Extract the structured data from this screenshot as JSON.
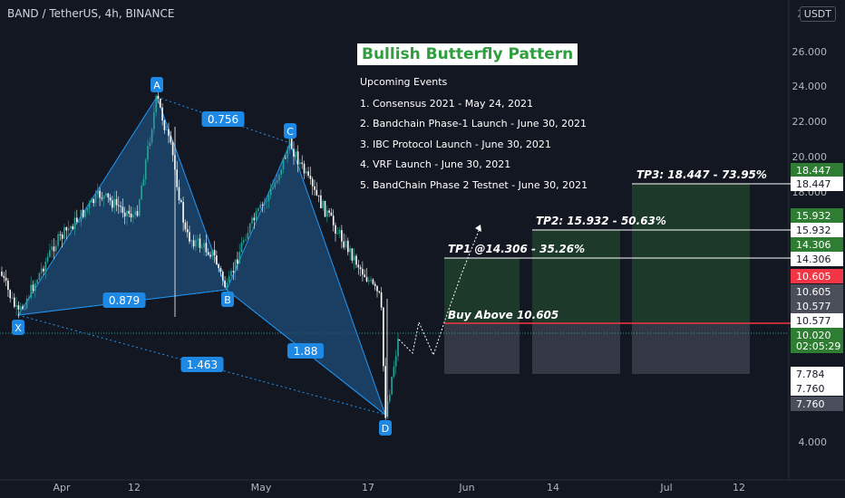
{
  "header": {
    "symbol": "BAND / TetherUS, 4h, BINANCE",
    "currency": "USDT",
    "axis_top_label": "2"
  },
  "panel": {
    "title": "Bullish Butterfly Pattern",
    "events_heading": "Upcoming Events",
    "events": [
      "1. Consensus 2021 - May 24, 2021",
      "2. Bandchain Phase-1 Launch - June 30, 2021",
      "3. IBC Protocol Launch - June 30, 2021",
      "4. VRF Launch - June 30, 2021",
      "5. BandChain Phase 2 Testnet - June 30, 2021"
    ]
  },
  "colors": {
    "background": "#131722",
    "candle_up": "#26a69a",
    "candle_down": "#ffffff",
    "pattern_fill": "#1f4e79",
    "pattern_line": "#2196f3",
    "target_fill": "#1e3d2a",
    "stop_fill": "#3a3e4a",
    "entry_line": "#f23645",
    "tag_blue": "#1e88e5"
  },
  "chart_data": {
    "type": "candlestick",
    "x_ticks": [
      "Apr",
      "12",
      "May",
      "17",
      "Jun",
      "14",
      "Jul",
      "12"
    ],
    "y_ticks": [
      "26.000",
      "24.000",
      "22.000",
      "20.000",
      "18.000",
      "4.000"
    ],
    "pattern": {
      "name": "Bullish Butterfly Pattern",
      "points": [
        {
          "label": "X",
          "price": 7.784
        },
        {
          "label": "A",
          "price": 23.3
        },
        {
          "label": "B",
          "price": 9.0
        },
        {
          "label": "C",
          "price": 20.7
        },
        {
          "label": "D",
          "price": 5.1
        }
      ],
      "ratios": [
        "0.756",
        "0.879",
        "1.463",
        "1.88"
      ]
    },
    "targets": [
      {
        "label": "TP1 @14.306 - 35.26%",
        "price": 14.306
      },
      {
        "label": "TP2: 15.932 - 50.63%",
        "price": 15.932
      },
      {
        "label": "TP3: 18.447 - 73.95%",
        "price": 18.447
      }
    ],
    "entry": {
      "label": "Buy Above 10.605",
      "price": 10.605
    },
    "price_tags": [
      {
        "value": "18.447",
        "style": "green"
      },
      {
        "value": "18.447",
        "style": "white"
      },
      {
        "value": "15.932",
        "style": "green"
      },
      {
        "value": "15.932",
        "style": "white"
      },
      {
        "value": "14.306",
        "style": "green"
      },
      {
        "value": "14.306",
        "style": "white"
      },
      {
        "value": "10.605",
        "style": "red"
      },
      {
        "value": "10.605",
        "style": "gray"
      },
      {
        "value": "10.577",
        "style": "gray"
      },
      {
        "value": "10.577",
        "style": "white"
      },
      {
        "value": "10.020",
        "style": "current"
      },
      {
        "value": "02:05:29",
        "style": "current"
      },
      {
        "value": "7.784",
        "style": "white"
      },
      {
        "value": "7.760",
        "style": "white"
      },
      {
        "value": "7.760",
        "style": "gray"
      }
    ]
  }
}
